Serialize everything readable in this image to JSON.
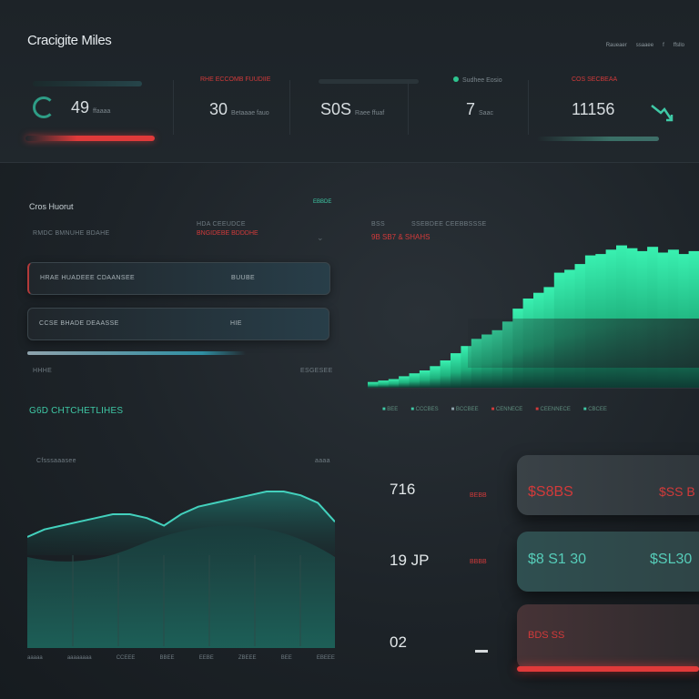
{
  "header": {
    "title": "Cracigite Miles",
    "links": [
      "Raueaer",
      "ssaaee",
      "f",
      "ffsllo"
    ],
    "kpis": [
      {
        "label": "",
        "value": "49",
        "unit": "ffaaaa"
      },
      {
        "label": "RHE ECCOMB FUUDIIE",
        "value": "30",
        "unit": "Betaaae fauo"
      },
      {
        "label": "",
        "value": "S0S",
        "unit": "Raee ffuaf"
      },
      {
        "label": "Sudhee Eosio",
        "value": "7",
        "unit": "Saac"
      },
      {
        "label": "COS SECBEAA",
        "value": "11156",
        "unit": ""
      }
    ]
  },
  "form_panel": {
    "title": "Cros Huorut",
    "tag": "EBBDE",
    "sub_left": "RMDC BMNUHE BDAHE",
    "sub_mid": "HDA CEEUDCE",
    "sub_red": "BNGIDEBE BDDDHE",
    "fields": [
      {
        "label": "HRAE HUADEEE CDAANSEE",
        "value": "BUUBE"
      },
      {
        "label": "CCSE BHADE DEAASSE",
        "value": "HIE"
      }
    ],
    "foot_left": "HHHE",
    "foot_right": "ESGESEE"
  },
  "area_chart": {
    "legend_title": "BSS",
    "legend_sub": "SSEBDEE CEEBBSSSE",
    "red_label": "9B SB7 & SHAHS",
    "legend_items": [
      "BEE",
      "CCCBES",
      "BCCBEE",
      "CENNECE",
      "CEENNECE",
      "CBCEE"
    ]
  },
  "line_chart": {
    "title": "G6D CHTCHETLIHES",
    "sub_left": "Cfsssaaasee",
    "sub_right": "aaaa",
    "x_ticks": [
      "aaaaa",
      "aaaaaaaa",
      "CCEEE",
      "BBEE",
      "EEBE",
      "ZBEEE",
      "BEE",
      "EBEEE"
    ]
  },
  "value_rows": [
    {
      "number": "716",
      "tag": "BEBB",
      "card_left": "$S8BS",
      "card_right": "$SS B"
    },
    {
      "number": "19 JP",
      "tag": "BBBB",
      "card_left": "$8 S1 30",
      "card_right": "$SL30"
    },
    {
      "number": "02",
      "tag": "",
      "card_left": "BDS SS",
      "card_right": ""
    }
  ],
  "chart_data": [
    {
      "type": "area",
      "values": [
        4,
        5,
        6,
        8,
        10,
        12,
        15,
        19,
        24,
        29,
        34,
        37,
        40,
        46,
        55,
        62,
        66,
        70,
        80,
        82,
        86,
        92,
        93,
        96,
        99,
        97,
        95,
        98,
        94,
        96,
        93,
        95
      ],
      "color": "#2ee6a0"
    },
    {
      "type": "line",
      "values": [
        5,
        6,
        6.5,
        7,
        7.5,
        8,
        8,
        7.5,
        6.5,
        8,
        9,
        9.5,
        10,
        10.5,
        11,
        11,
        10.5,
        9.5,
        7
      ],
      "color": "#3fc9b6"
    }
  ],
  "colors": {
    "accent_teal": "#3fc9a6",
    "accent_red": "#d23a3a",
    "bg": "#1d2328"
  }
}
